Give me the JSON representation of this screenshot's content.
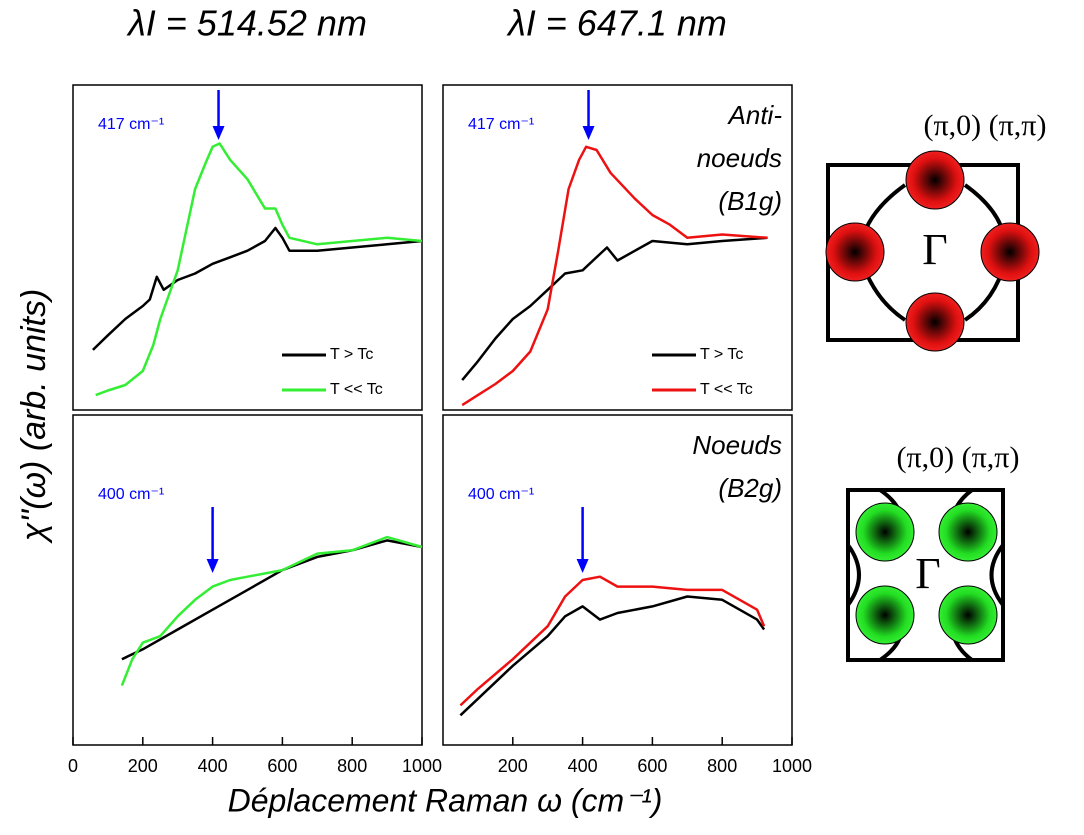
{
  "figure": {
    "xlabel": "Déplacement Raman ω (cm⁻¹)",
    "ylabel": "χ''(ω) (arb. units)"
  },
  "chart_data": [
    {
      "type": "line",
      "title": "λI = 514.52 nm",
      "xlim": [
        0,
        1000
      ],
      "ylim": [
        0,
        10
      ],
      "legend": "lower right",
      "annotation": {
        "text": "417 cm⁻¹",
        "x": 417,
        "color": "#0000ff"
      },
      "series": [
        {
          "name": "T > Tc",
          "color": "#000000",
          "x": [
            57,
            100,
            150,
            200,
            220,
            240,
            260,
            300,
            350,
            400,
            450,
            500,
            550,
            580,
            600,
            620,
            700,
            800,
            900,
            1000
          ],
          "values": [
            1.85,
            2.3,
            2.8,
            3.2,
            3.4,
            4.1,
            3.7,
            4.0,
            4.2,
            4.5,
            4.7,
            4.9,
            5.2,
            5.6,
            5.3,
            4.9,
            4.9,
            5.0,
            5.1,
            5.2
          ]
        },
        {
          "name": "T << Tc",
          "color": "#33ee33",
          "x": [
            65,
            100,
            150,
            200,
            230,
            250,
            300,
            350,
            380,
            400,
            420,
            450,
            500,
            550,
            580,
            600,
            620,
            700,
            800,
            900,
            1000
          ],
          "values": [
            0.46,
            0.6,
            0.77,
            1.2,
            2.0,
            2.8,
            4.3,
            6.8,
            7.6,
            8.1,
            8.2,
            7.7,
            7.1,
            6.2,
            6.2,
            5.7,
            5.3,
            5.1,
            5.2,
            5.3,
            5.2
          ]
        }
      ]
    },
    {
      "type": "line",
      "title": "λI = 647.1 nm",
      "xlim": [
        0,
        1000
      ],
      "ylim": [
        0,
        10
      ],
      "legend": "lower right",
      "annotation": {
        "text": "417 cm⁻¹",
        "x": 417,
        "color": "#0000ff"
      },
      "label_lines": [
        "Anti-",
        "noeuds",
        "(B1g)"
      ],
      "series": [
        {
          "name": "T > Tc",
          "color": "#000000",
          "x": [
            55,
            100,
            150,
            200,
            250,
            300,
            350,
            400,
            450,
            470,
            500,
            550,
            600,
            700,
            800,
            930
          ],
          "values": [
            0.92,
            1.5,
            2.2,
            2.8,
            3.2,
            3.7,
            4.2,
            4.3,
            4.8,
            5.0,
            4.6,
            4.9,
            5.2,
            5.1,
            5.2,
            5.3
          ]
        },
        {
          "name": "T << Tc",
          "color": "#ee1111",
          "x": [
            55,
            100,
            150,
            200,
            250,
            300,
            330,
            360,
            390,
            410,
            440,
            480,
            550,
            600,
            650,
            700,
            800,
            930
          ],
          "values": [
            0.15,
            0.46,
            0.8,
            1.2,
            1.8,
            3.1,
            4.9,
            6.8,
            7.7,
            8.1,
            8.0,
            7.3,
            6.5,
            6.0,
            5.7,
            5.3,
            5.4,
            5.3
          ]
        }
      ]
    },
    {
      "type": "line",
      "xlim": [
        0,
        1000
      ],
      "ylim": [
        0,
        10
      ],
      "xticks": [
        0,
        200,
        400,
        600,
        800,
        1000
      ],
      "annotation": {
        "text": "400 cm⁻¹",
        "x": 400,
        "color": "#0000ff"
      },
      "series": [
        {
          "name": "T > Tc",
          "color": "#000000",
          "x": [
            140,
            200,
            300,
            400,
            500,
            600,
            700,
            800,
            900,
            1000
          ],
          "values": [
            2.6,
            2.9,
            3.5,
            4.1,
            4.7,
            5.3,
            5.7,
            5.9,
            6.2,
            6.0
          ]
        },
        {
          "name": "T << Tc",
          "color": "#33ee33",
          "x": [
            140,
            170,
            200,
            250,
            300,
            350,
            400,
            450,
            500,
            600,
            700,
            800,
            900,
            1000
          ],
          "values": [
            1.8,
            2.6,
            3.1,
            3.3,
            3.9,
            4.4,
            4.8,
            5.0,
            5.1,
            5.3,
            5.8,
            5.9,
            6.3,
            6.0
          ]
        }
      ]
    },
    {
      "type": "line",
      "xlim": [
        0,
        1000
      ],
      "ylim": [
        0,
        10
      ],
      "xticks": [
        200,
        400,
        600,
        800,
        1000
      ],
      "annotation": {
        "text": "400 cm⁻¹",
        "x": 400,
        "color": "#0000ff"
      },
      "label_lines": [
        "Noeuds",
        "(B2g)"
      ],
      "series": [
        {
          "name": "T > Tc",
          "color": "#000000",
          "x": [
            50,
            100,
            200,
            300,
            350,
            400,
            450,
            500,
            600,
            700,
            800,
            900,
            920
          ],
          "values": [
            0.9,
            1.4,
            2.4,
            3.3,
            3.9,
            4.2,
            3.8,
            4.0,
            4.2,
            4.5,
            4.4,
            3.8,
            3.5
          ]
        },
        {
          "name": "T << Tc",
          "color": "#ee1111",
          "x": [
            50,
            100,
            200,
            300,
            350,
            400,
            450,
            500,
            600,
            700,
            800,
            900,
            920
          ],
          "values": [
            1.2,
            1.7,
            2.6,
            3.6,
            4.5,
            5.0,
            5.1,
            4.8,
            4.8,
            4.7,
            4.7,
            4.1,
            3.6
          ]
        }
      ]
    }
  ],
  "diagrams": [
    {
      "corner_label": "(π,0) (π,π)",
      "center_label": "Γ"
    },
    {
      "corner_label": "(π,0) (π,π)",
      "center_label": "Γ"
    }
  ]
}
